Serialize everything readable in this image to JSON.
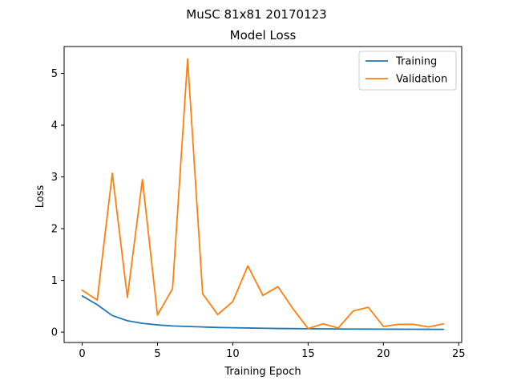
{
  "suptitle": "MuSC 81x81 20170123",
  "chart_data": {
    "type": "line",
    "title": "Model Loss",
    "xlabel": "Training Epoch",
    "ylabel": "Loss",
    "xlim": [
      -1.2,
      25.2
    ],
    "ylim": [
      -0.2,
      5.52
    ],
    "xticks": [
      0,
      5,
      10,
      15,
      20,
      25
    ],
    "yticks": [
      0,
      1,
      2,
      3,
      4,
      5
    ],
    "grid": false,
    "legend_position": "upper-right",
    "x": [
      0,
      1,
      2,
      3,
      4,
      5,
      6,
      7,
      8,
      9,
      10,
      11,
      12,
      13,
      14,
      15,
      16,
      17,
      18,
      19,
      20,
      21,
      22,
      23,
      24
    ],
    "series": [
      {
        "name": "Training",
        "color": "#1f77b4",
        "values": [
          0.7,
          0.53,
          0.32,
          0.22,
          0.17,
          0.14,
          0.12,
          0.11,
          0.1,
          0.09,
          0.085,
          0.08,
          0.075,
          0.07,
          0.068,
          0.065,
          0.063,
          0.061,
          0.06,
          0.059,
          0.058,
          0.057,
          0.056,
          0.055,
          0.054
        ]
      },
      {
        "name": "Validation",
        "color": "#ff7f0e",
        "values": [
          0.81,
          0.62,
          3.07,
          0.67,
          2.95,
          0.33,
          0.84,
          5.28,
          0.74,
          0.34,
          0.59,
          1.28,
          0.71,
          0.88,
          0.45,
          0.07,
          0.16,
          0.08,
          0.41,
          0.48,
          0.11,
          0.15,
          0.15,
          0.1,
          0.16
        ]
      }
    ]
  }
}
